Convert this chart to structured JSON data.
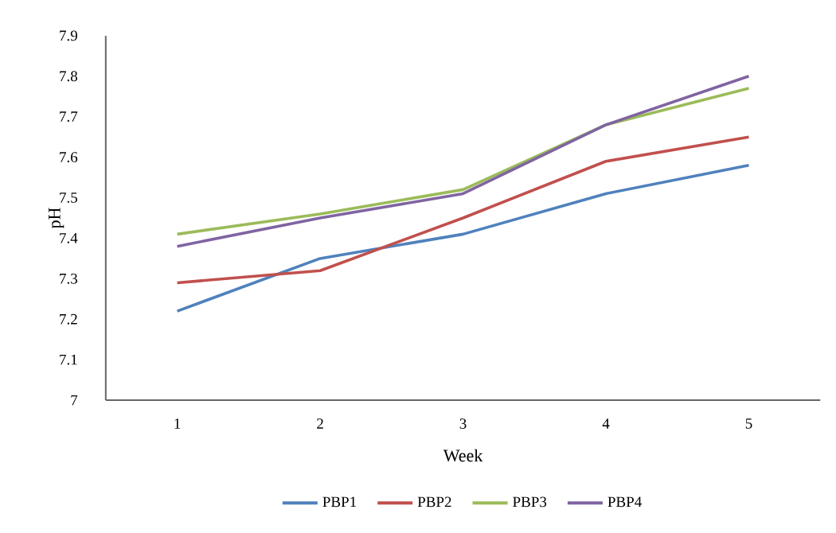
{
  "chart_data": {
    "type": "line",
    "xlabel": "Week",
    "ylabel": "pH",
    "categories": [
      "1",
      "2",
      "3",
      "4",
      "5"
    ],
    "series": [
      {
        "name": "PBP1",
        "color": "#4f81bd",
        "values": [
          7.22,
          7.35,
          7.41,
          7.51,
          7.58
        ]
      },
      {
        "name": "PBP2",
        "color": "#c0504d",
        "values": [
          7.29,
          7.32,
          7.45,
          7.59,
          7.65
        ]
      },
      {
        "name": "PBP3",
        "color": "#9bbb59",
        "values": [
          7.41,
          7.46,
          7.52,
          7.68,
          7.77
        ]
      },
      {
        "name": "PBP4",
        "color": "#8064a2",
        "values": [
          7.38,
          7.45,
          7.51,
          7.68,
          7.8
        ]
      }
    ],
    "ylim": [
      7,
      7.9
    ],
    "yticks": [
      7,
      7.1,
      7.2,
      7.3,
      7.4,
      7.5,
      7.6,
      7.7,
      7.8,
      7.9
    ],
    "grid": false,
    "legend": "bottom",
    "marker": "none",
    "line_style": "solid"
  }
}
